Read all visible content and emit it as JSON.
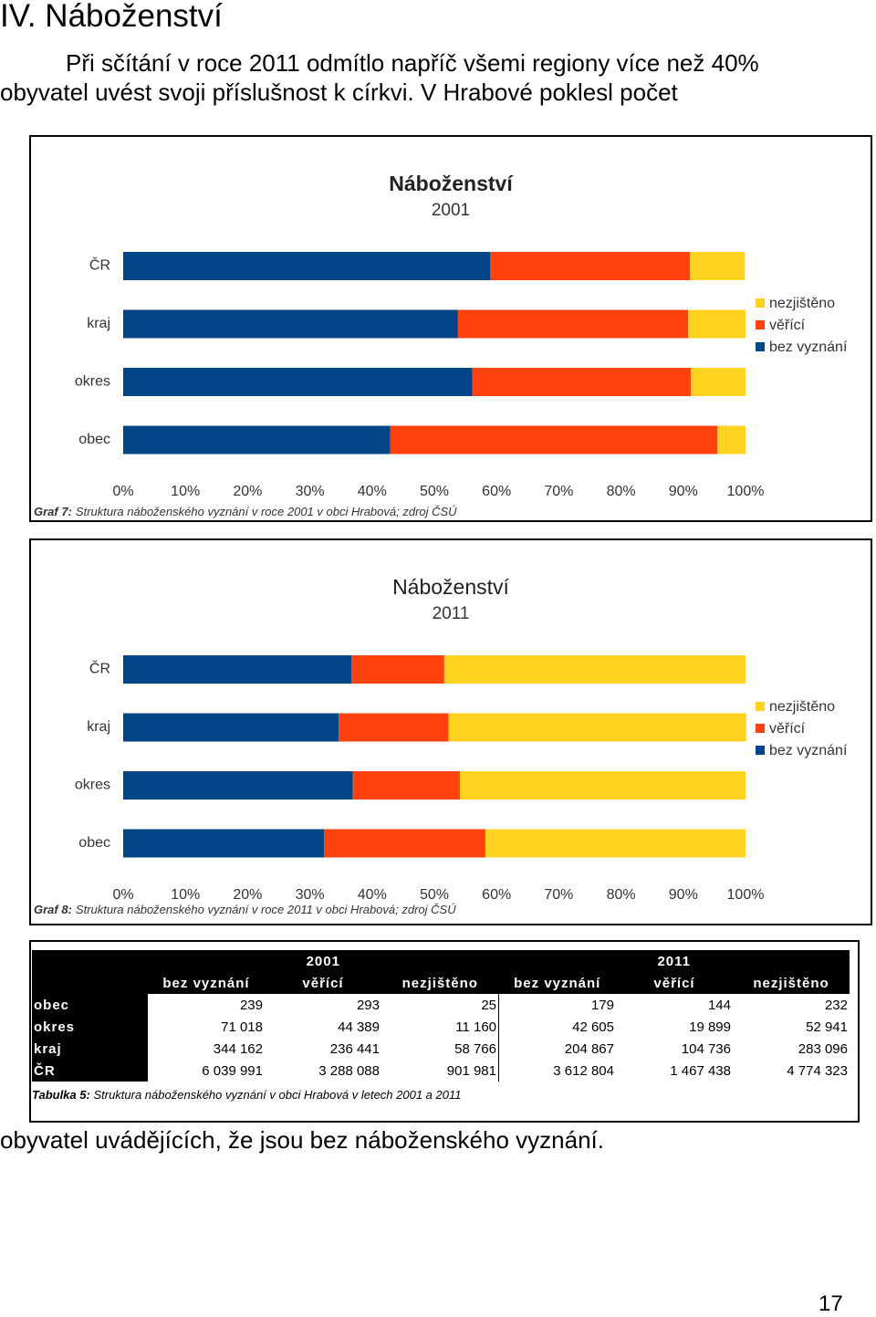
{
  "heading": "IV. Náboženství",
  "paragraph": [
    "Při sčítání v roce 2011 odmítlo napříč všemi regiony více než 40%",
    "obyvatel uvést svoji příslušnost k církvi. V Hrabové poklesl počet"
  ],
  "chart_data": [
    {
      "type": "bar",
      "orientation": "horizontal",
      "stacked": true,
      "title": "Náboženství",
      "subtitle": "2001",
      "categories": [
        "ČR",
        "kraj",
        "okres",
        "obec"
      ],
      "series": [
        {
          "name": "bez vyznání",
          "color": "#004586",
          "values": [
            59.0,
            53.8,
            56.1,
            42.9
          ]
        },
        {
          "name": "věřící",
          "color": "#ff420e",
          "values": [
            32.1,
            37.0,
            35.1,
            52.6
          ]
        },
        {
          "name": "nezjištěno",
          "color": "#ffd320",
          "values": [
            8.8,
            9.2,
            8.8,
            4.5
          ]
        }
      ],
      "xlim": [
        0,
        100
      ],
      "xticks": [
        {
          "value": 0,
          "label": "0%"
        },
        {
          "value": 10,
          "label": "10%"
        },
        {
          "value": 20,
          "label": "20%"
        },
        {
          "value": 30,
          "label": "30%"
        },
        {
          "value": 40,
          "label": "40%"
        },
        {
          "value": 50,
          "label": "50%"
        },
        {
          "value": 60,
          "label": "60%"
        },
        {
          "value": 70,
          "label": "70%"
        },
        {
          "value": 80,
          "label": "80%"
        },
        {
          "value": 90,
          "label": "90%"
        },
        {
          "value": 100,
          "label": "100%"
        }
      ],
      "legend": "right",
      "caption_label": "Graf 7:",
      "caption": "Struktura náboženského vyznání v roce 2001 v obci Hrabová; zdroj ČSÚ"
    },
    {
      "type": "bar",
      "orientation": "horizontal",
      "stacked": true,
      "title": "Náboženství",
      "subtitle": "2011",
      "categories": [
        "ČR",
        "kraj",
        "okres",
        "obec"
      ],
      "series": [
        {
          "name": "bez vyznání",
          "color": "#004586",
          "values": [
            36.7,
            34.6,
            36.9,
            32.3
          ]
        },
        {
          "name": "věřící",
          "color": "#ff420e",
          "values": [
            14.9,
            17.7,
            17.2,
            25.9
          ]
        },
        {
          "name": "nezjištěno",
          "color": "#ffd320",
          "values": [
            48.4,
            47.8,
            45.9,
            41.8
          ]
        }
      ],
      "xlim": [
        0,
        100
      ],
      "xticks": [
        {
          "value": 0,
          "label": "0%"
        },
        {
          "value": 10,
          "label": "10%"
        },
        {
          "value": 20,
          "label": "20%"
        },
        {
          "value": 30,
          "label": "30%"
        },
        {
          "value": 40,
          "label": "40%"
        },
        {
          "value": 50,
          "label": "50%"
        },
        {
          "value": 60,
          "label": "60%"
        },
        {
          "value": 70,
          "label": "70%"
        },
        {
          "value": 80,
          "label": "80%"
        },
        {
          "value": 90,
          "label": "90%"
        },
        {
          "value": 100,
          "label": "100%"
        }
      ],
      "legend": "right",
      "caption_label": "Graf 8:",
      "caption": "Struktura náboženského vyznání v roce 2011 v obci Hrabová; zdroj ČSÚ"
    }
  ],
  "table": {
    "groups": [
      "2001",
      "2011"
    ],
    "columns": [
      "bez vyznání",
      "věřící",
      "nezjištěno",
      "bez vyznání",
      "věřící",
      "nezjištěno"
    ],
    "rows": [
      {
        "label": "obec",
        "values": [
          "239",
          "293",
          "25",
          "179",
          "144",
          "232"
        ]
      },
      {
        "label": "okres",
        "values": [
          "71 018",
          "44 389",
          "11 160",
          "42 605",
          "19 899",
          "52 941"
        ]
      },
      {
        "label": "kraj",
        "values": [
          "344 162",
          "236 441",
          "58 766",
          "204 867",
          "104 736",
          "283 096"
        ]
      },
      {
        "label": "ČR",
        "values": [
          "6 039 991",
          "3 288 088",
          "901 981",
          "3 612 804",
          "1 467 438",
          "4 774 323"
        ]
      }
    ],
    "caption_label": "Tabulka 5:",
    "caption": "Struktura náboženského vyznání v obci Hrabová v letech 2001 a 2011"
  },
  "paragraph_end": "obyvatel uvádějících, že jsou bez náboženského vyznání.",
  "page_number": "17"
}
